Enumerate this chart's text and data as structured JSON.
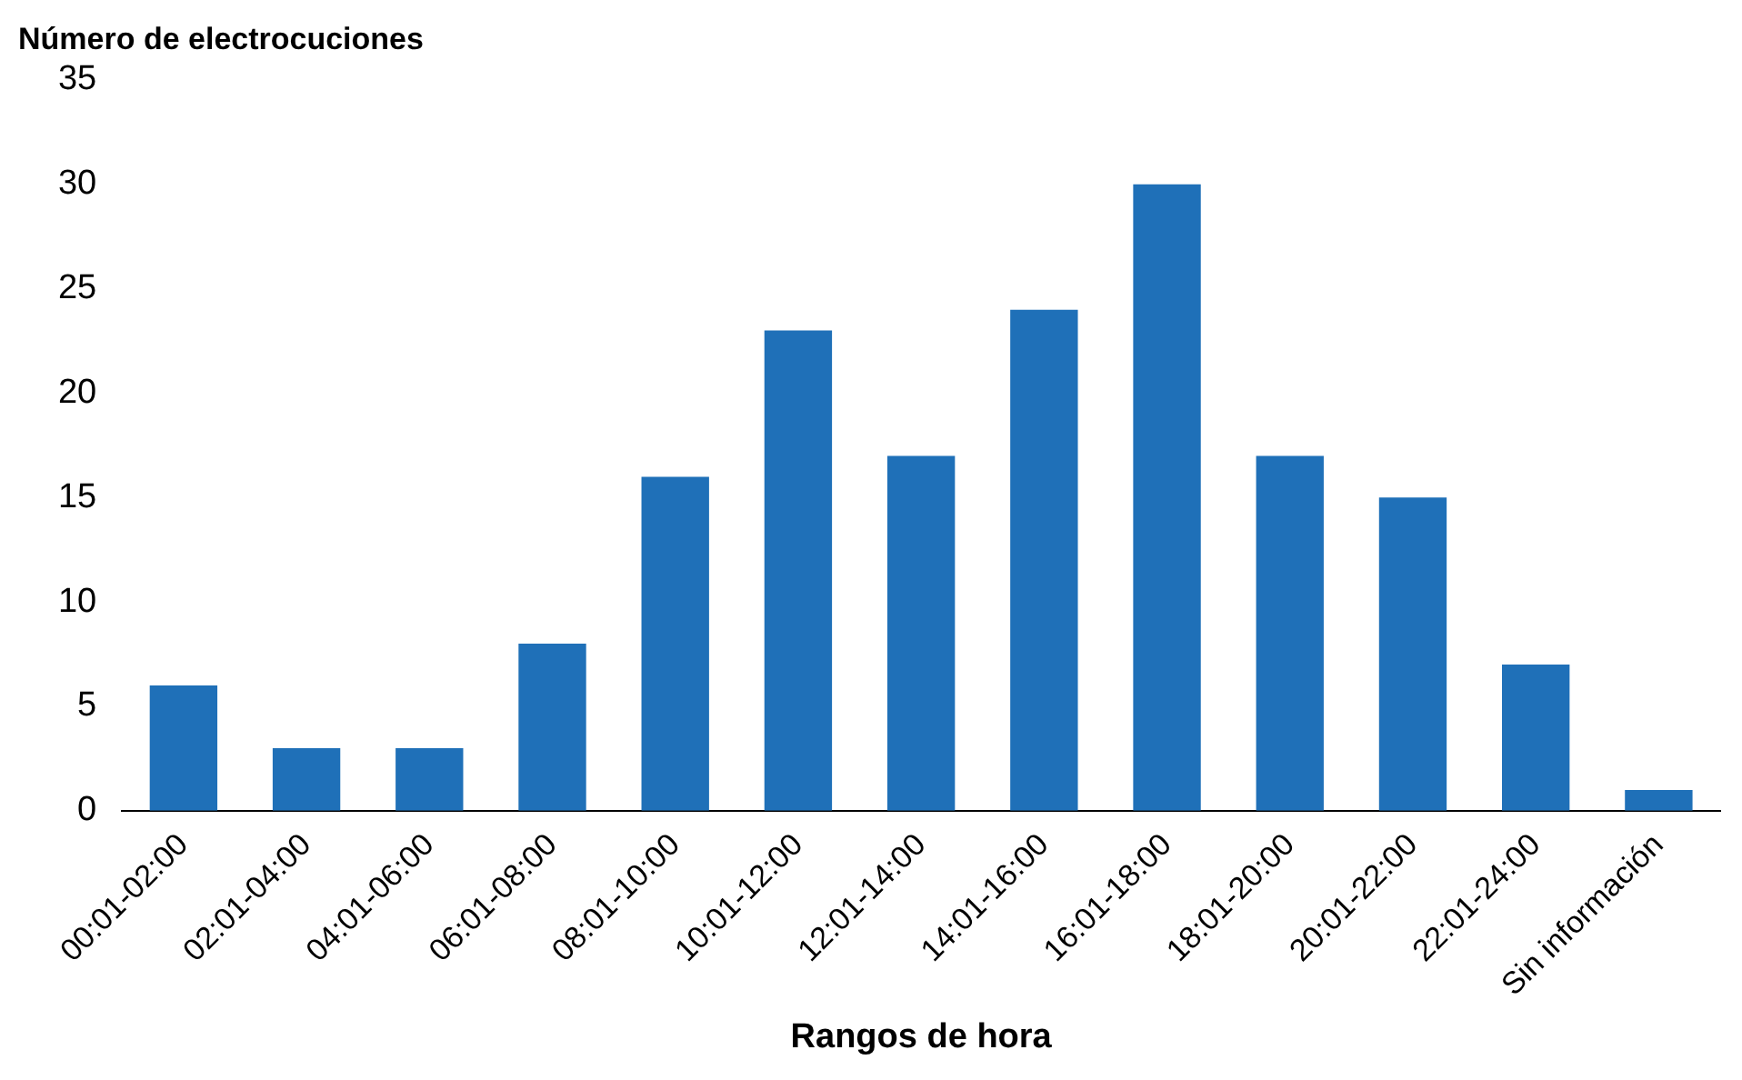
{
  "chart_data": {
    "type": "bar",
    "xlabel": "Rangos de hora",
    "ylabel": "Número de electrocuciones",
    "categories": [
      "00:01-02:00",
      "02:01-04:00",
      "04:01-06:00",
      "06:01-08:00",
      "08:01-10:00",
      "10:01-12:00",
      "12:01-14:00",
      "14:01-16:00",
      "16:01-18:00",
      "18:01-20:00",
      "20:01-22:00",
      "22:01-24:00",
      "Sin información"
    ],
    "values": [
      6,
      3,
      3,
      8,
      16,
      23,
      17,
      24,
      30,
      17,
      15,
      7,
      1
    ],
    "color": "#1f70b8",
    "ylim": [
      0,
      35
    ],
    "yticks": [
      0,
      5,
      10,
      15,
      20,
      25,
      30,
      35
    ],
    "grid": false,
    "legend": false
  }
}
